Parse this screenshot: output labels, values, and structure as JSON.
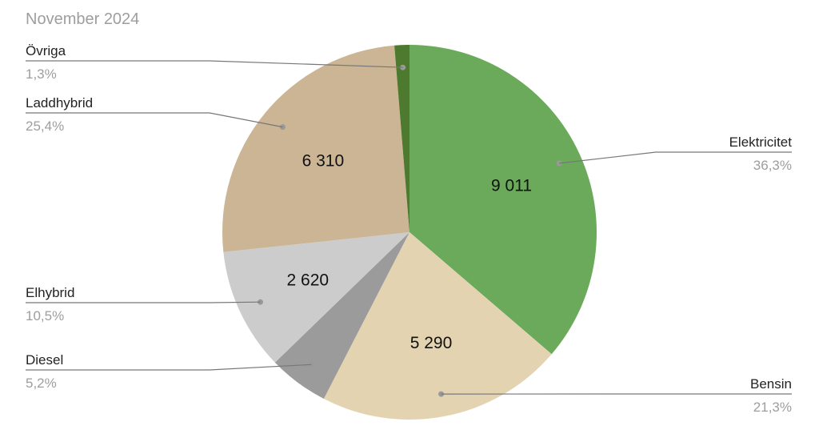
{
  "chart_data": {
    "type": "pie",
    "title": "November 2024",
    "slices": [
      {
        "label": "Elektricitet",
        "value": 9011,
        "value_label": "9 011",
        "percent_label": "36,3%",
        "color": "#6aaa5a"
      },
      {
        "label": "Bensin",
        "value": 5290,
        "value_label": "5 290",
        "percent_label": "21,3%",
        "color": "#e4d3b0"
      },
      {
        "label": "Diesel",
        "value": 1290,
        "value_label": "",
        "percent_label": "5,2%",
        "color": "#9b9b9b"
      },
      {
        "label": "Elhybrid",
        "value": 2620,
        "value_label": "2 620",
        "percent_label": "10,5%",
        "color": "#cccccc"
      },
      {
        "label": "Laddhybrid",
        "value": 6310,
        "value_label": "6 310",
        "percent_label": "25,4%",
        "color": "#cbb595"
      },
      {
        "label": "Övriga",
        "value": 320,
        "value_label": "",
        "percent_label": "1,3%",
        "color": "#4d7a2e"
      }
    ]
  }
}
